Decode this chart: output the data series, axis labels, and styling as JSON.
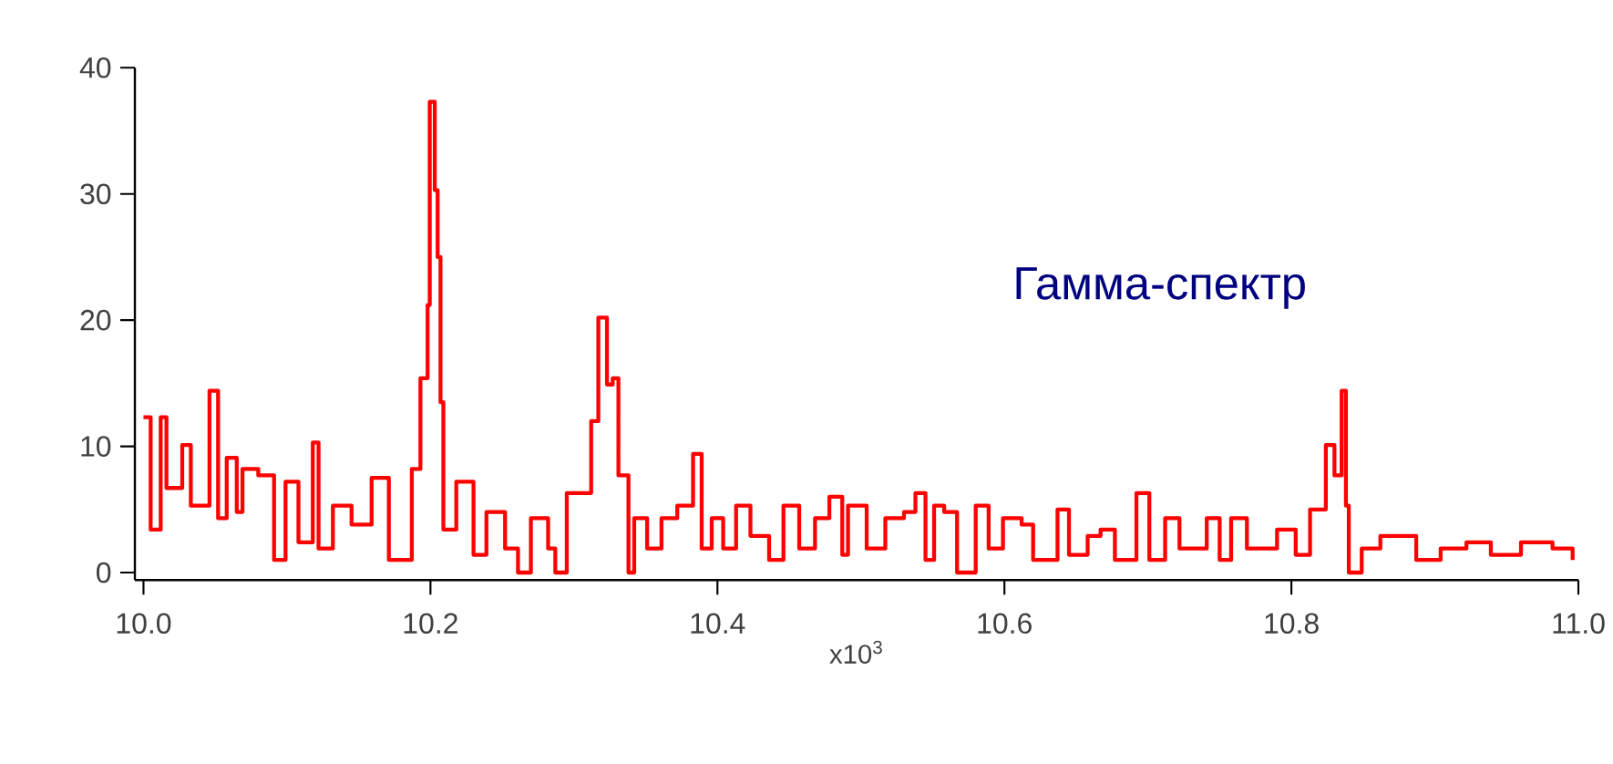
{
  "chart_data": {
    "type": "step",
    "xlabel": "x10$^{3}$",
    "annotations": [
      "Гамма-спектр"
    ],
    "x": [
      10.0,
      10.005,
      10.012,
      10.016,
      10.027,
      10.033,
      10.046,
      10.052,
      10.058,
      10.065,
      10.069,
      10.08,
      10.091,
      10.099,
      10.108,
      10.118,
      10.122,
      10.132,
      10.145,
      10.159,
      10.171,
      10.181,
      10.187,
      10.193,
      10.198,
      10.1995,
      10.203,
      10.205,
      10.207,
      10.209,
      10.218,
      10.23,
      10.239,
      10.252,
      10.261,
      10.27,
      10.282,
      10.287,
      10.295,
      10.303,
      10.312,
      10.317,
      10.323,
      10.327,
      10.331,
      10.338,
      10.342,
      10.351,
      10.361,
      10.372,
      10.383,
      10.389,
      10.396,
      10.404,
      10.413,
      10.423,
      10.436,
      10.446,
      10.457,
      10.468,
      10.478,
      10.487,
      10.491,
      10.504,
      10.517,
      10.53,
      10.538,
      10.545,
      10.551,
      10.558,
      10.567,
      10.58,
      10.589,
      10.599,
      10.612,
      10.62,
      10.637,
      10.645,
      10.658,
      10.667,
      10.677,
      10.684,
      10.692,
      10.701,
      10.712,
      10.722,
      10.741,
      10.75,
      10.758,
      10.769,
      10.79,
      10.803,
      10.813,
      10.824,
      10.83,
      10.835,
      10.838,
      10.84,
      10.849,
      10.862,
      10.879,
      10.887,
      10.904,
      10.922,
      10.939,
      10.96,
      10.982,
      10.996
    ],
    "values": [
      12.3,
      3.4,
      12.3,
      6.7,
      10.1,
      5.3,
      14.4,
      4.3,
      9.1,
      4.8,
      8.2,
      7.7,
      1.0,
      7.2,
      2.4,
      10.3,
      1.9,
      5.3,
      3.8,
      7.5,
      1.0,
      1.0,
      8.2,
      15.4,
      21.2,
      37.3,
      30.3,
      25.0,
      13.5,
      3.4,
      7.2,
      1.4,
      4.8,
      1.9,
      0,
      4.3,
      1.9,
      0,
      6.3,
      6.3,
      12.0,
      20.2,
      14.9,
      15.4,
      7.7,
      0,
      4.3,
      1.9,
      4.3,
      5.3,
      9.4,
      1.9,
      4.3,
      1.9,
      5.3,
      2.9,
      1.0,
      5.3,
      1.9,
      4.3,
      6.0,
      1.4,
      5.3,
      1.9,
      4.3,
      4.8,
      6.3,
      1.0,
      5.3,
      4.8,
      0,
      5.3,
      1.9,
      4.3,
      3.8,
      1.0,
      5.0,
      1.4,
      2.9,
      3.4,
      1.0,
      1.0,
      6.3,
      1.0,
      4.3,
      1.9,
      4.3,
      1.0,
      4.3,
      1.9,
      3.4,
      1.4,
      5.0,
      10.1,
      7.7,
      14.4,
      5.3,
      0,
      1.9,
      2.9,
      2.9,
      1.0,
      1.9,
      2.4,
      1.4,
      2.4,
      1.9,
      1.0
    ],
    "color": "#ff0000",
    "xlim": [
      9.994,
      11.0
    ],
    "xticks": [
      {
        "value": 10.0,
        "label": "10.0"
      },
      {
        "value": 10.2,
        "label": "10.2"
      },
      {
        "value": 10.4,
        "label": "10.4"
      },
      {
        "value": 10.6,
        "label": "10.6"
      },
      {
        "value": 10.8,
        "label": "10.8"
      },
      {
        "value": 11.0,
        "label": "11.0"
      }
    ],
    "ylim": [
      -0.6,
      40
    ],
    "yticks": [
      0,
      10,
      20,
      30,
      40
    ]
  }
}
